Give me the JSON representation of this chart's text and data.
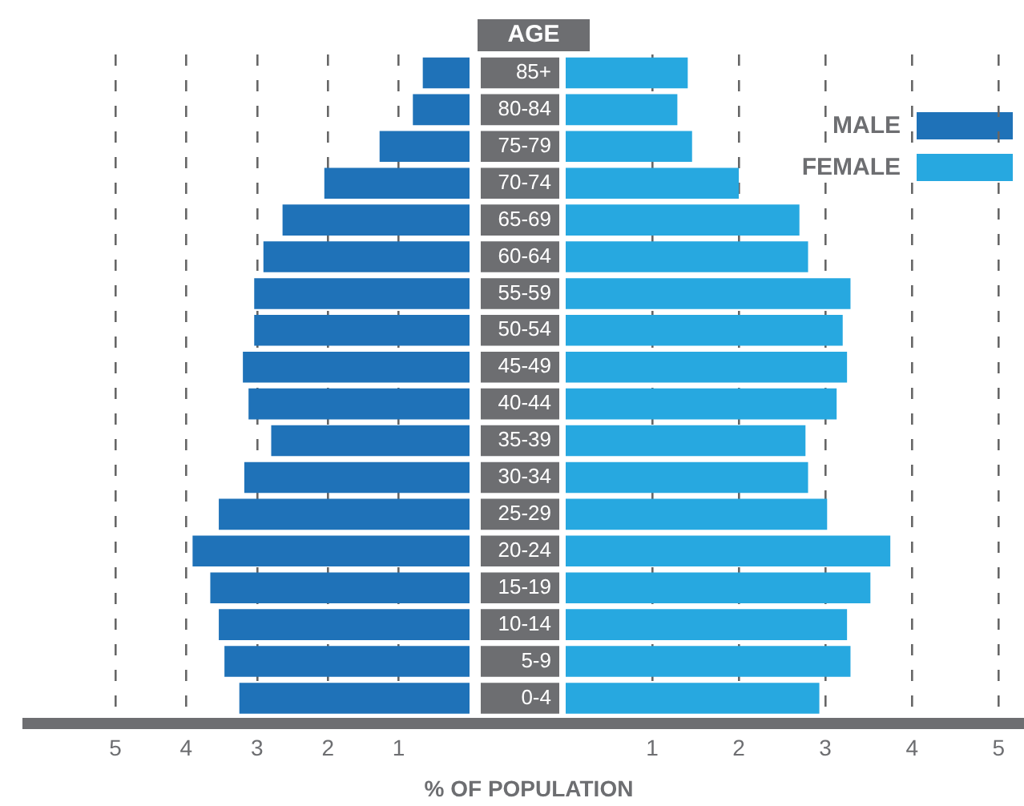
{
  "chart_data": [
    {
      "type": "bar",
      "orientation": "horizontal",
      "tick_labels": "x",
      "categories": [
        null,
        null,
        null,
        null,
        null,
        null,
        null,
        null,
        null,
        null,
        null,
        null,
        null,
        null,
        null,
        null,
        null,
        null
      ],
      "series": [
        {
          "name": "MALE",
          "color": "#1f72b8",
          "values": [
            0.66,
            0.8,
            1.27,
            2.05,
            2.64,
            2.91,
            3.04,
            3.04,
            3.2,
            3.12,
            2.8,
            3.18,
            3.54,
            3.91,
            3.66,
            3.54,
            3.46,
            3.25
          ]
        }
      ],
      "xlim": [
        5,
        0
      ],
      "xticks": [
        5,
        4,
        3,
        2,
        1
      ],
      "grid": "x",
      "legend": "top right"
    },
    {
      "type": "bar",
      "orientation": "horizontal",
      "xlabel": "% OF POPULATION",
      "ylabel": "AGE",
      "categories": [
        "85+",
        "80-84",
        "75-79",
        "70-74",
        "65-69",
        "60-64",
        "55-59",
        "50-54",
        "45-49",
        "40-44",
        "35-39",
        "30-34",
        "25-29",
        "20-24",
        "15-19",
        "10-14",
        "5-9",
        "0-4"
      ],
      "series": [
        {
          "name": "FEMALE",
          "color": "#27a8e0",
          "values": [
            1.41,
            1.29,
            1.46,
            2.0,
            2.7,
            2.8,
            3.29,
            3.2,
            3.25,
            3.13,
            2.77,
            2.8,
            3.02,
            3.75,
            3.52,
            3.25,
            3.29,
            2.93
          ]
        }
      ],
      "xlim": [
        0,
        5
      ],
      "xticks": [
        1,
        2,
        3,
        4,
        5
      ],
      "grid": "x",
      "legend": "top right"
    }
  ]
}
